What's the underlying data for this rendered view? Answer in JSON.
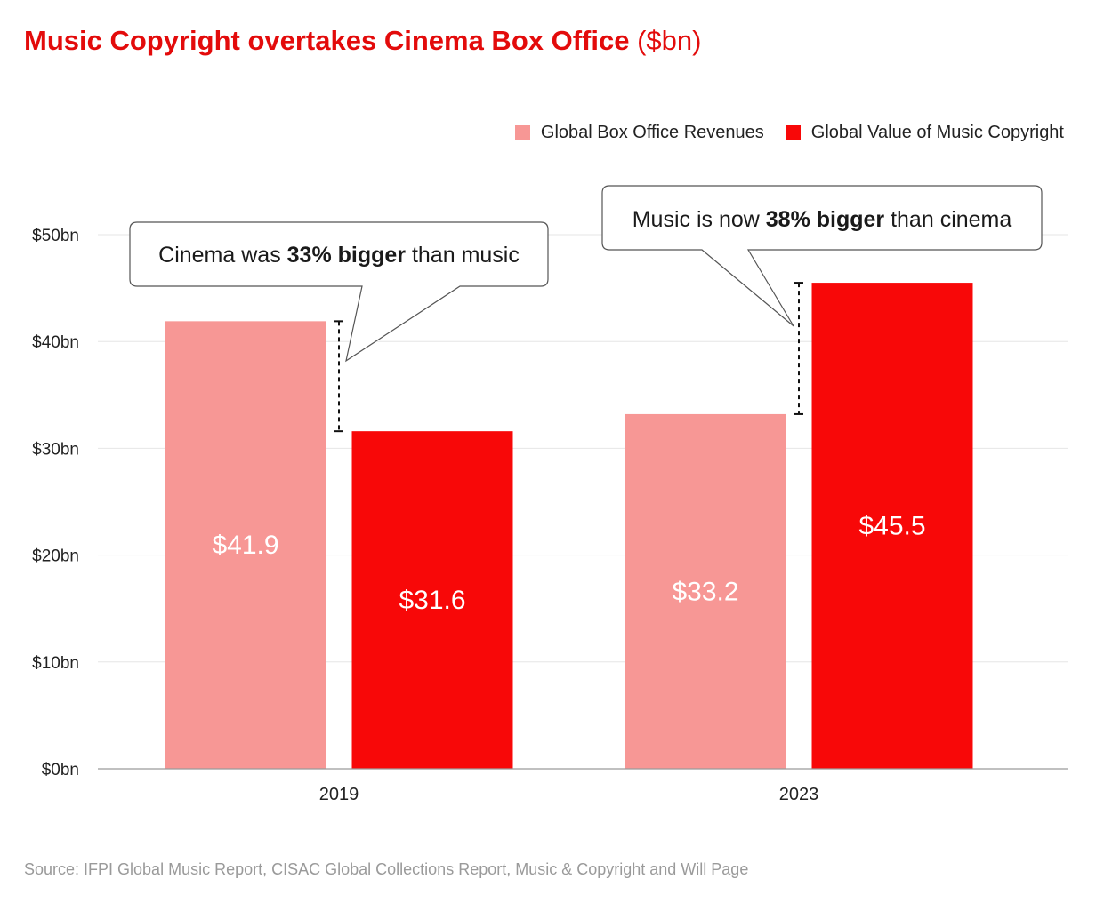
{
  "title": {
    "main": "Music Copyright overtakes Cinema Box Office",
    "unit": "($bn)"
  },
  "legend": [
    {
      "label": "Global Box Office Revenues",
      "color": "#f79795"
    },
    {
      "label": "Global Value of Music Copyright",
      "color": "#f80808"
    }
  ],
  "chart_data": {
    "type": "bar",
    "title": "Music Copyright overtakes Cinema Box Office ($bn)",
    "categories": [
      "2019",
      "2023"
    ],
    "series": [
      {
        "name": "Global Box Office Revenues",
        "values": [
          41.9,
          33.2
        ],
        "labels": [
          "$41.9",
          "$33.2"
        ],
        "color": "#f79795"
      },
      {
        "name": "Global Value of Music Copyright",
        "values": [
          31.6,
          45.5
        ],
        "labels": [
          "$31.6",
          "$45.5"
        ],
        "color": "#f80808"
      }
    ],
    "ylim": [
      0,
      50
    ],
    "yticks": [
      0,
      10,
      20,
      30,
      40,
      50
    ],
    "ytick_labels": [
      "$0bn",
      "$10bn",
      "$20bn",
      "$30bn",
      "$40bn",
      "$50bn"
    ],
    "grid": true,
    "legend_position": "top-right",
    "annotations": [
      {
        "category": "2019",
        "pre": "Cinema was ",
        "bold": "33% bigger",
        "post": " than music"
      },
      {
        "category": "2023",
        "pre": "Music is now ",
        "bold": "38% bigger",
        "post": " than cinema"
      }
    ]
  },
  "source": "Source: IFPI Global Music Report, CISAC Global Collections Report, Music & Copyright and Will Page"
}
